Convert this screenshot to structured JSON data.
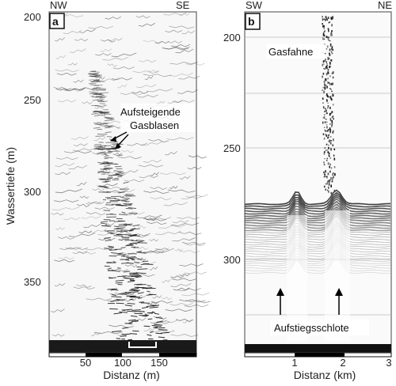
{
  "panel_a": {
    "letter": "a",
    "left_dir": "NW",
    "right_dir": "SE",
    "y_axis_label": "Wassertiefe (m)",
    "y_ticks": [
      "200",
      "250",
      "300",
      "350"
    ],
    "x_ticks": [
      "50",
      "100",
      "150"
    ],
    "x_axis_label": "Distanz (m)",
    "annotation": [
      "Aufsteigende",
      "Gasblasen"
    ]
  },
  "panel_b": {
    "letter": "b",
    "left_dir": "SW",
    "right_dir": "NE",
    "y_ticks": [
      "200",
      "250",
      "300"
    ],
    "x_ticks": [
      "1",
      "2",
      "3"
    ],
    "x_axis_label": "Distanz (km)",
    "plume_label": "Gasfahne",
    "vent_label": "Aufstiegsschlote"
  },
  "colors": {
    "background": "#ffffff",
    "sediment": "#1a1a1a",
    "scalebar": "#000000"
  }
}
